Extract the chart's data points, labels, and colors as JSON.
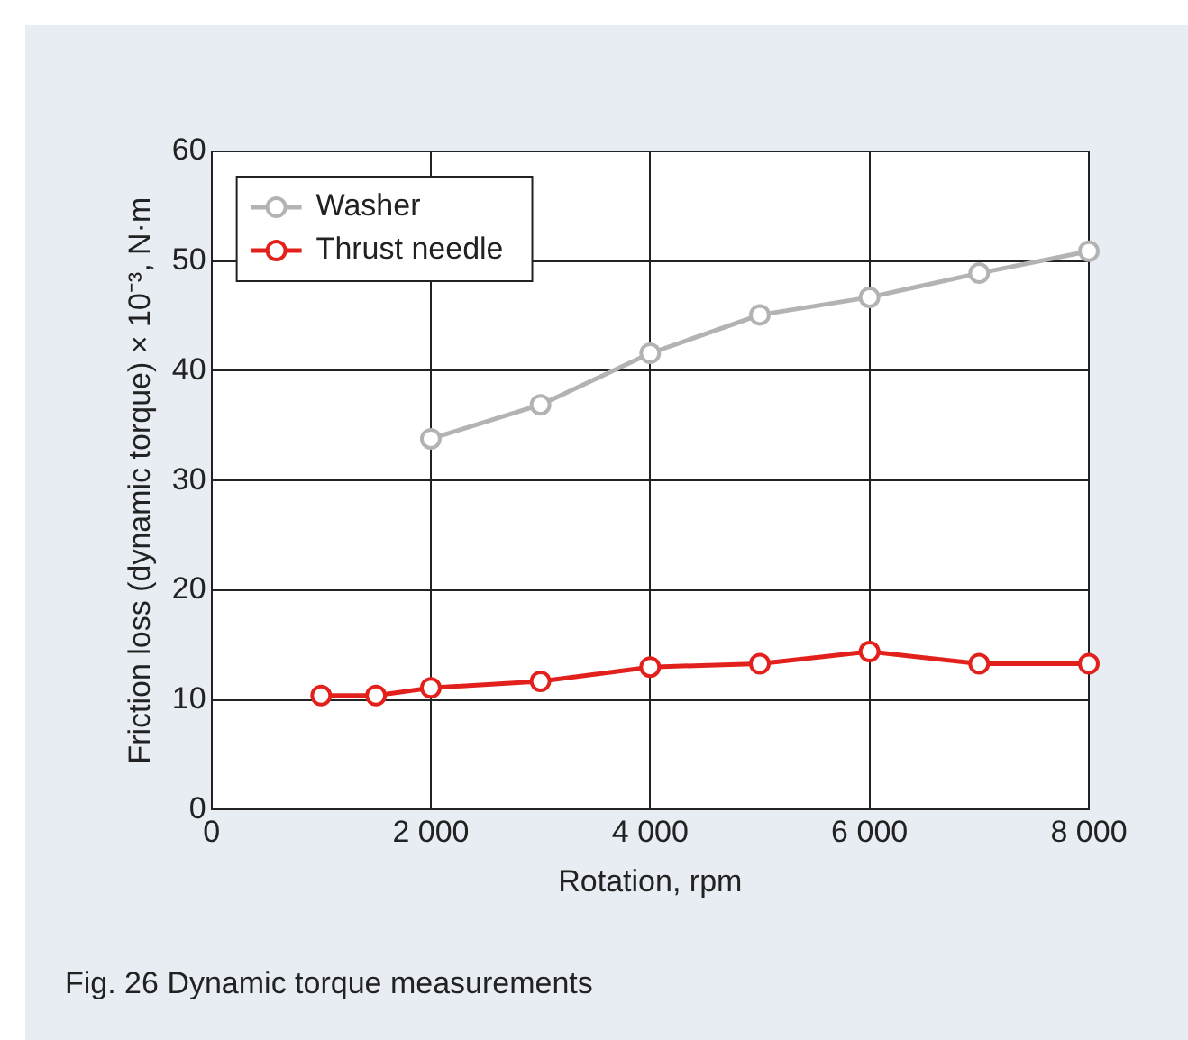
{
  "chart_data": {
    "type": "line",
    "xlabel": "Rotation, rpm",
    "ylabel": "Friction loss (dynamic torque) × 10⁻³, N·m",
    "annotations": [
      "Fig. 26  Dynamic torque measurements"
    ],
    "series": [
      {
        "name": "Washer",
        "color": "#b3b3b3",
        "x": [
          2000,
          3000,
          4000,
          5000,
          6000,
          7000,
          8000
        ],
        "values": [
          33.8,
          36.9,
          41.6,
          45.1,
          46.7,
          48.9,
          50.9
        ]
      },
      {
        "name": "Thrust needle",
        "color": "#e3211c",
        "x": [
          1000,
          1500,
          2000,
          3000,
          4000,
          5000,
          6000,
          7000,
          8000
        ],
        "values": [
          10.4,
          10.4,
          11.1,
          11.7,
          13.0,
          13.3,
          14.4,
          13.3,
          13.3
        ]
      }
    ],
    "xlim": [
      0,
      8000
    ],
    "xticks": [
      0,
      {
        "value": 2000,
        "label": "2 000"
      },
      {
        "value": 4000,
        "label": "4 000"
      },
      {
        "value": 6000,
        "label": "6 000"
      },
      {
        "value": 8000,
        "label": "8 000"
      }
    ],
    "ylim": [
      0,
      60
    ],
    "yticks": [
      0,
      10,
      20,
      30,
      40,
      50,
      60
    ],
    "grid": true,
    "legend": "top left",
    "marker": "circle",
    "line_style": "solid"
  }
}
